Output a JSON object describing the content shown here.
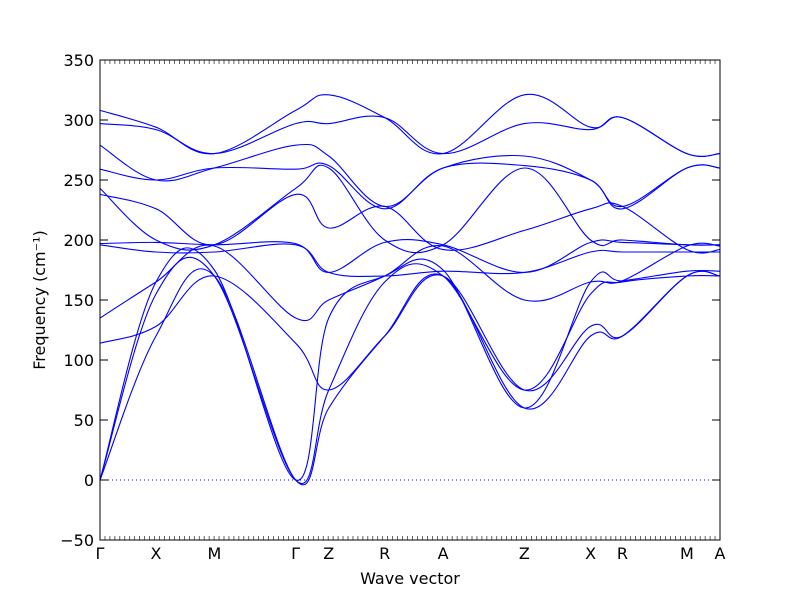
{
  "chart_data": {
    "type": "line",
    "xlabel": "Wave vector",
    "ylabel": "Frequency (cm⁻¹)",
    "ylim": [
      -50,
      350
    ],
    "yticks": [
      -50,
      0,
      50,
      100,
      150,
      200,
      250,
      300,
      350
    ],
    "xlim": [
      0,
      10.3
    ],
    "high_symmetry_points": [
      {
        "label": "Γ",
        "x": 0.0
      },
      {
        "label": "X",
        "x": 0.93
      },
      {
        "label": "M",
        "x": 1.9
      },
      {
        "label": "Γ",
        "x": 3.25
      },
      {
        "label": "Z",
        "x": 3.8
      },
      {
        "label": "R",
        "x": 4.73
      },
      {
        "label": "A",
        "x": 5.7
      },
      {
        "label": "Z",
        "x": 7.05
      },
      {
        "label": "X",
        "x": 8.15
      },
      {
        "label": "R",
        "x": 8.68
      },
      {
        "label": "M",
        "x": 9.75
      },
      {
        "label": "A",
        "x": 10.3
      }
    ],
    "zero_line": {
      "y": 0,
      "style": "dotted"
    },
    "series_color": "#0000ff",
    "series": [
      {
        "x": [
          0,
          0.93,
          1.9,
          3.25,
          3.8,
          4.73,
          5.7,
          7.05,
          8.15,
          8.68,
          9.75,
          10.3
        ],
        "values": [
          0,
          120,
          170,
          0,
          60,
          120,
          170,
          60,
          120,
          120,
          170,
          170
        ]
      },
      {
        "x": [
          0,
          0.93,
          1.9,
          3.25,
          3.8,
          4.73,
          5.7,
          7.05,
          8.15,
          8.68,
          9.75,
          10.3
        ],
        "values": [
          0,
          155,
          170,
          0,
          75,
          165,
          170,
          75,
          155,
          165,
          170,
          170
        ]
      },
      {
        "x": [
          0,
          0.93,
          1.9,
          3.25,
          3.8,
          4.73,
          5.7,
          7.05,
          8.15,
          8.68,
          9.75,
          10.3
        ],
        "values": [
          0,
          165,
          175,
          0,
          135,
          170,
          175,
          60,
          165,
          166,
          174,
          174
        ]
      },
      {
        "x": [
          0,
          0.93,
          1.9,
          3.25,
          3.8,
          4.73,
          5.7,
          7.05,
          8.15,
          8.68,
          9.75,
          10.3
        ],
        "values": [
          114,
          128,
          170,
          114,
          75,
          120,
          170,
          75,
          128,
          120,
          170,
          170
        ]
      },
      {
        "x": [
          0,
          0.93,
          1.9,
          3.25,
          3.8,
          4.73,
          5.7,
          7.05,
          8.15,
          8.68,
          9.75,
          10.3
        ],
        "values": [
          135,
          165,
          195,
          135,
          150,
          170,
          195,
          150,
          165,
          166,
          195,
          195
        ]
      },
      {
        "x": [
          0,
          0.93,
          1.9,
          3.25,
          3.8,
          4.73,
          5.7,
          7.05,
          8.15,
          8.68,
          9.75,
          10.3
        ],
        "values": [
          196,
          190,
          190,
          196,
          173,
          170,
          174,
          173,
          190,
          190,
          190,
          190
        ]
      },
      {
        "x": [
          0,
          0.93,
          1.9,
          3.25,
          3.8,
          4.73,
          5.7,
          7.05,
          8.15,
          8.68,
          9.75,
          10.3
        ],
        "values": [
          197,
          198,
          196,
          197,
          173,
          198,
          196,
          173,
          198,
          198,
          196,
          196
        ]
      },
      {
        "x": [
          0,
          0.93,
          1.9,
          3.25,
          3.8,
          4.73,
          5.7,
          7.05,
          8.15,
          8.68,
          9.75,
          10.3
        ],
        "values": [
          243,
          200,
          196,
          243,
          260,
          200,
          196,
          260,
          200,
          200,
          196,
          196
        ]
      },
      {
        "x": [
          0,
          0.93,
          1.9,
          3.25,
          3.8,
          4.73,
          5.7,
          7.05,
          8.15,
          8.68,
          9.75,
          10.3
        ],
        "values": [
          238,
          226,
          196,
          238,
          210,
          228,
          192,
          208,
          226,
          228,
          192,
          192
        ]
      },
      {
        "x": [
          0,
          0.93,
          1.9,
          3.25,
          3.8,
          4.73,
          5.7,
          7.05,
          8.15,
          8.68,
          9.75,
          10.3
        ],
        "values": [
          259,
          250,
          260,
          259,
          262,
          226,
          260,
          262,
          250,
          226,
          260,
          260
        ]
      },
      {
        "x": [
          0,
          0.93,
          1.9,
          3.25,
          3.8,
          4.73,
          5.7,
          7.05,
          8.15,
          8.68,
          9.75,
          10.3
        ],
        "values": [
          279,
          250,
          260,
          279,
          270,
          228,
          260,
          270,
          250,
          228,
          260,
          260
        ]
      },
      {
        "x": [
          0,
          0.93,
          1.9,
          3.25,
          3.8,
          4.73,
          5.7,
          7.05,
          8.15,
          8.68,
          9.75,
          10.3
        ],
        "values": [
          297,
          292,
          272,
          297,
          297,
          302,
          272,
          297,
          292,
          302,
          272,
          272
        ]
      },
      {
        "x": [
          0,
          0.93,
          1.9,
          3.25,
          3.8,
          4.73,
          5.7,
          7.05,
          8.15,
          8.68,
          9.75,
          10.3
        ],
        "values": [
          308,
          294,
          272,
          308,
          321,
          302,
          272,
          321,
          294,
          302,
          272,
          272
        ]
      }
    ]
  }
}
